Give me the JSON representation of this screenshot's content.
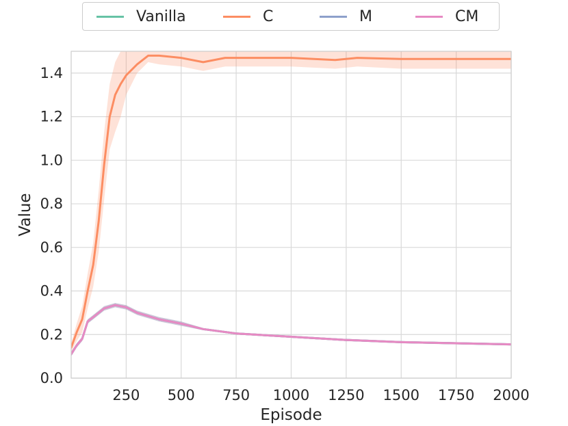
{
  "chart_data": {
    "type": "line",
    "title": "",
    "xlabel": "Episode",
    "ylabel": "Value",
    "xlim": [
      0,
      2000
    ],
    "ylim": [
      0.0,
      1.5
    ],
    "grid": true,
    "legend_position": "top-center (outside plot)",
    "x_ticks": [
      250,
      500,
      750,
      1000,
      1250,
      1500,
      1750,
      2000
    ],
    "x_tick_labels": [
      "250",
      "500",
      "750",
      "1000",
      "1250",
      "1500",
      "1750",
      "2000"
    ],
    "y_ticks": [
      0.0,
      0.2,
      0.4,
      0.6,
      0.8,
      1.0,
      1.2,
      1.4
    ],
    "y_tick_labels": [
      "0.0",
      "0.2",
      "0.4",
      "0.6",
      "0.8",
      "1.0",
      "1.2",
      "1.4"
    ],
    "series": [
      {
        "name": "Vanilla",
        "color": "#66c2a5",
        "x": [
          0,
          25,
          50,
          75,
          100,
          150,
          200,
          250,
          300,
          400,
          500,
          600,
          750,
          1000,
          1250,
          1500,
          1750,
          2000
        ],
        "y": [
          0.11,
          0.15,
          0.18,
          0.26,
          0.28,
          0.32,
          0.335,
          0.325,
          0.3,
          0.27,
          0.25,
          0.225,
          0.205,
          0.19,
          0.175,
          0.165,
          0.16,
          0.155
        ],
        "band_low": [
          0.1,
          0.14,
          0.17,
          0.25,
          0.27,
          0.31,
          0.325,
          0.315,
          0.29,
          0.26,
          0.24,
          0.22,
          0.2,
          0.185,
          0.17,
          0.16,
          0.155,
          0.15
        ],
        "band_high": [
          0.12,
          0.16,
          0.19,
          0.27,
          0.29,
          0.33,
          0.345,
          0.335,
          0.31,
          0.28,
          0.26,
          0.23,
          0.21,
          0.195,
          0.18,
          0.17,
          0.165,
          0.16
        ]
      },
      {
        "name": "C",
        "color": "#fc8d62",
        "x": [
          0,
          25,
          50,
          75,
          100,
          125,
          150,
          175,
          200,
          225,
          250,
          300,
          350,
          400,
          500,
          600,
          700,
          800,
          1000,
          1200,
          1300,
          1500,
          1750,
          2000
        ],
        "y": [
          0.14,
          0.21,
          0.27,
          0.4,
          0.52,
          0.72,
          0.98,
          1.2,
          1.3,
          1.35,
          1.39,
          1.44,
          1.48,
          1.48,
          1.47,
          1.45,
          1.47,
          1.47,
          1.47,
          1.46,
          1.47,
          1.465,
          1.465,
          1.465
        ],
        "band_low": [
          0.12,
          0.17,
          0.21,
          0.32,
          0.42,
          0.58,
          0.82,
          1.05,
          1.13,
          1.2,
          1.3,
          1.4,
          1.45,
          1.44,
          1.43,
          1.41,
          1.43,
          1.43,
          1.43,
          1.42,
          1.43,
          1.42,
          1.42,
          1.42
        ],
        "band_high": [
          0.16,
          0.25,
          0.33,
          0.48,
          0.62,
          0.86,
          1.13,
          1.35,
          1.45,
          1.5,
          1.5,
          1.5,
          1.5,
          1.5,
          1.5,
          1.5,
          1.5,
          1.5,
          1.5,
          1.5,
          1.5,
          1.5,
          1.5,
          1.5
        ]
      },
      {
        "name": "M",
        "color": "#8da0cb",
        "x": [
          0,
          25,
          50,
          75,
          100,
          150,
          200,
          250,
          300,
          400,
          500,
          600,
          750,
          1000,
          1250,
          1500,
          1750,
          2000
        ],
        "y": [
          0.11,
          0.15,
          0.18,
          0.26,
          0.28,
          0.32,
          0.335,
          0.325,
          0.3,
          0.27,
          0.25,
          0.225,
          0.205,
          0.19,
          0.175,
          0.165,
          0.16,
          0.155
        ],
        "band_low": [
          0.1,
          0.14,
          0.17,
          0.25,
          0.27,
          0.31,
          0.325,
          0.315,
          0.29,
          0.26,
          0.24,
          0.22,
          0.2,
          0.185,
          0.17,
          0.16,
          0.155,
          0.15
        ],
        "band_high": [
          0.12,
          0.16,
          0.19,
          0.27,
          0.29,
          0.33,
          0.345,
          0.335,
          0.31,
          0.28,
          0.26,
          0.23,
          0.21,
          0.195,
          0.18,
          0.17,
          0.165,
          0.16
        ]
      },
      {
        "name": "CM",
        "color": "#e78ac3",
        "x": [
          0,
          25,
          50,
          75,
          100,
          150,
          200,
          250,
          300,
          400,
          500,
          600,
          750,
          1000,
          1250,
          1500,
          1750,
          2000
        ],
        "y": [
          0.11,
          0.15,
          0.18,
          0.26,
          0.28,
          0.32,
          0.335,
          0.325,
          0.3,
          0.27,
          0.25,
          0.225,
          0.205,
          0.19,
          0.175,
          0.165,
          0.16,
          0.155
        ],
        "band_low": [
          0.1,
          0.14,
          0.17,
          0.25,
          0.27,
          0.31,
          0.325,
          0.315,
          0.29,
          0.26,
          0.24,
          0.22,
          0.2,
          0.185,
          0.17,
          0.16,
          0.155,
          0.15
        ],
        "band_high": [
          0.12,
          0.16,
          0.19,
          0.27,
          0.29,
          0.33,
          0.345,
          0.335,
          0.31,
          0.28,
          0.26,
          0.23,
          0.21,
          0.195,
          0.18,
          0.17,
          0.165,
          0.16
        ]
      }
    ]
  }
}
